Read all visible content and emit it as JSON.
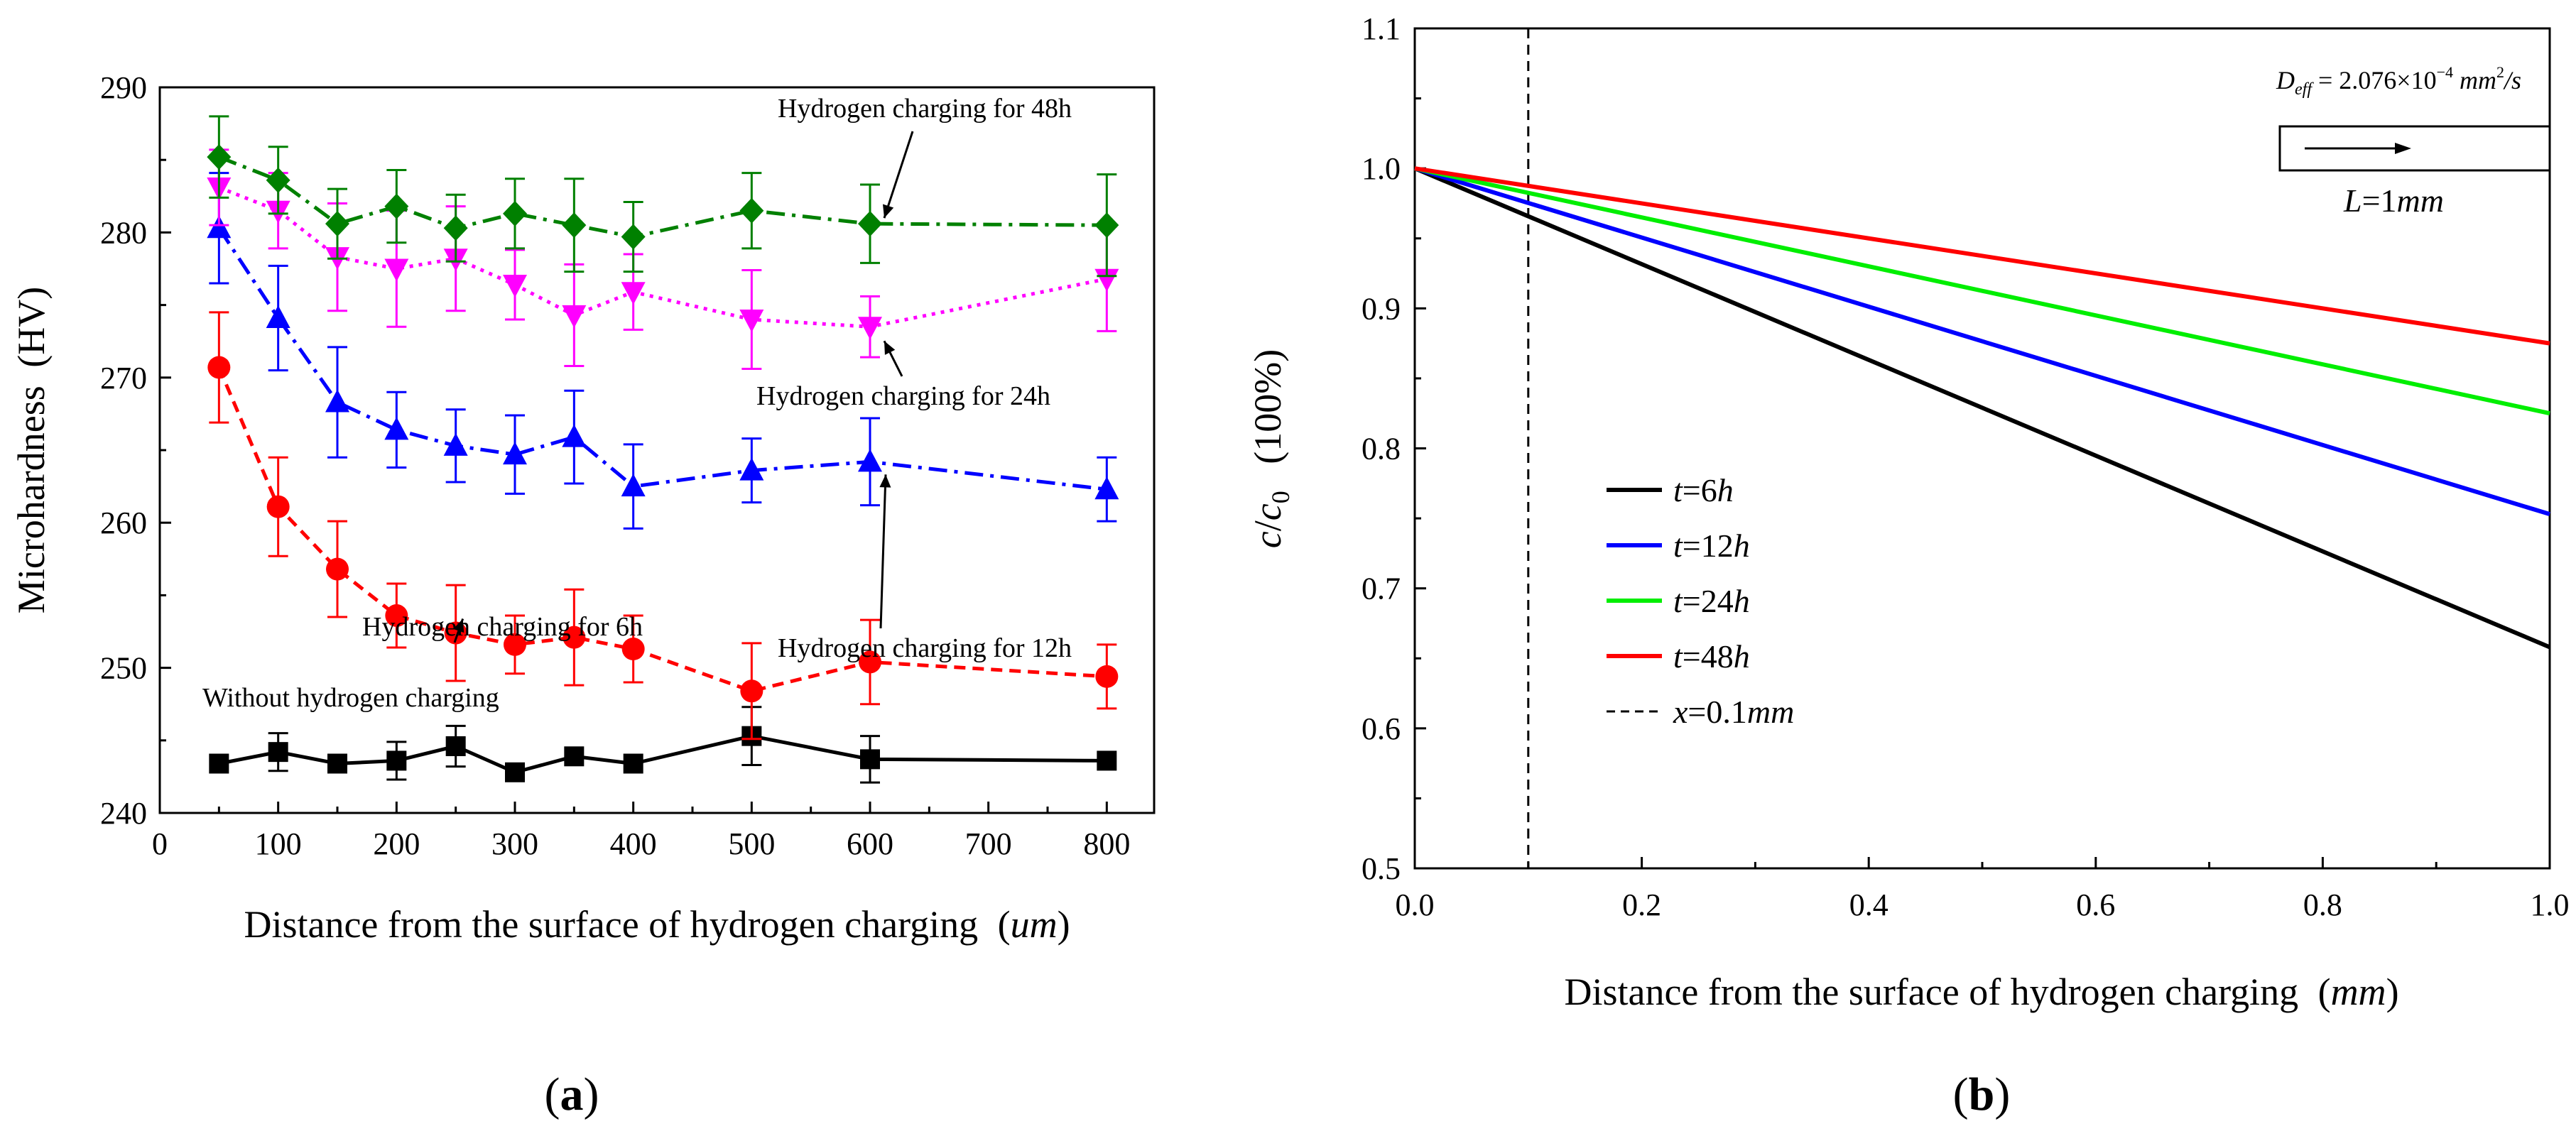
{
  "chart_data": [
    {
      "id": "a",
      "panel_label": "(a)",
      "type": "line",
      "xlabel": "Distance from the surface of hydrogen charging",
      "xlabel_unit": "um",
      "ylabel": "Microhardness",
      "ylabel_unit": "(HV)",
      "xlim": [
        0,
        840
      ],
      "ylim": [
        240,
        290
      ],
      "xticks": [
        0,
        100,
        200,
        300,
        400,
        500,
        600,
        700,
        800
      ],
      "yticks": [
        240,
        250,
        260,
        270,
        280,
        290
      ],
      "x": [
        50,
        100,
        150,
        200,
        250,
        300,
        350,
        400,
        500,
        600,
        800
      ],
      "series": [
        {
          "name": "Without hydrogen charging",
          "color": "#000000",
          "marker": "square",
          "dash": "solid",
          "values": [
            243.4,
            244.2,
            243.4,
            243.6,
            244.6,
            242.8,
            243.9,
            243.4,
            245.3,
            243.7,
            243.6
          ],
          "errors": [
            0.0,
            1.3,
            0.0,
            1.3,
            1.4,
            0.0,
            0.0,
            0.0,
            2.0,
            1.6,
            0.0
          ]
        },
        {
          "name": "Hydrogen charging for 6h",
          "color": "#ff0000",
          "marker": "circle",
          "dash": "dashed",
          "values": [
            270.7,
            261.1,
            256.8,
            253.6,
            252.4,
            251.6,
            252.1,
            251.3,
            248.4,
            250.4,
            249.4
          ],
          "errors": [
            3.8,
            3.4,
            3.3,
            2.2,
            3.3,
            2.0,
            3.3,
            2.3,
            3.3,
            2.9,
            2.2
          ]
        },
        {
          "name": "Hydrogen charging for 12h",
          "color": "#0000ff",
          "marker": "triangle-up",
          "dash": "dashdot",
          "values": [
            280.3,
            274.1,
            268.3,
            266.4,
            265.3,
            264.7,
            265.9,
            262.5,
            263.6,
            264.2,
            262.3
          ],
          "errors": [
            3.8,
            3.6,
            3.8,
            2.6,
            2.5,
            2.7,
            3.2,
            2.9,
            2.2,
            3.0,
            2.2
          ]
        },
        {
          "name": "Hydrogen charging for 24h",
          "color": "#ff00ff",
          "marker": "triangle-down",
          "dash": "dotted",
          "values": [
            283.1,
            281.5,
            278.3,
            277.5,
            278.2,
            276.4,
            274.3,
            275.9,
            274.0,
            273.5,
            276.8
          ],
          "errors": [
            2.6,
            2.6,
            3.7,
            4.0,
            3.6,
            2.4,
            3.5,
            2.6,
            3.4,
            2.1,
            3.6
          ]
        },
        {
          "name": "Hydrogen charging for 48h",
          "color": "#008000",
          "marker": "diamond",
          "dash": "dashdot",
          "values": [
            285.2,
            283.6,
            280.6,
            281.8,
            280.3,
            281.3,
            280.5,
            279.7,
            281.5,
            280.6,
            280.5
          ],
          "errors": [
            2.8,
            2.3,
            2.4,
            2.5,
            2.3,
            2.4,
            3.2,
            2.4,
            2.6,
            2.7,
            3.5
          ]
        }
      ],
      "annotations": [
        {
          "text": "Hydrogen charging for 48h",
          "series": 4
        },
        {
          "text": "Hydrogen charging for 24h",
          "series": 3
        },
        {
          "text": "Hydrogen charging for 12h",
          "series": 2
        },
        {
          "text": "Hydrogen charging for 6h",
          "series": 1
        },
        {
          "text": "Without hydrogen charging",
          "series": 0
        }
      ]
    },
    {
      "id": "b",
      "panel_label": "(b)",
      "type": "line",
      "xlabel": "Distance from the surface of hydrogen charging",
      "xlabel_unit": "mm",
      "ylabel": "c/c0",
      "ylabel_unit": "(100%)",
      "xlim": [
        0.0,
        1.0
      ],
      "ylim": [
        0.5,
        1.1
      ],
      "xticks": [
        "0.0",
        "0.2",
        "0.4",
        "0.6",
        "0.8",
        "1.0"
      ],
      "yticks": [
        "0.5",
        "0.6",
        "0.7",
        "0.8",
        "0.9",
        "1.0",
        "1.1"
      ],
      "series": [
        {
          "name": "t=6h",
          "color": "#000000",
          "x": [
            0.0,
            1.0
          ],
          "values": [
            1.0,
            0.658
          ]
        },
        {
          "name": "t=12h",
          "color": "#0000ff",
          "x": [
            0.0,
            1.0
          ],
          "values": [
            1.0,
            0.753
          ]
        },
        {
          "name": "t=24h",
          "color": "#00ee00",
          "x": [
            0.0,
            1.0
          ],
          "values": [
            1.0,
            0.825
          ]
        },
        {
          "name": "t=48h",
          "color": "#ff0000",
          "x": [
            0.0,
            1.0
          ],
          "values": [
            1.0,
            0.875
          ]
        }
      ],
      "vline": {
        "name": "x=0.1mm",
        "x": 0.1,
        "color": "#000000"
      },
      "legend_items": [
        {
          "prefix": "t",
          "value": "=6",
          "unit": "h"
        },
        {
          "prefix": "t",
          "value": "=12",
          "unit": "h"
        },
        {
          "prefix": "t",
          "value": "=24",
          "unit": "h"
        },
        {
          "prefix": "t",
          "value": "=48",
          "unit": "h"
        },
        {
          "prefix": "x",
          "value": "=0.1",
          "unit": "mm"
        }
      ],
      "inset": {
        "formula_lhs": "D",
        "formula_sub": "eff",
        "formula_rhs": " = 2.076×10",
        "formula_exp": "−4",
        "formula_units": " mm",
        "formula_units_exp": "2",
        "formula_tail": "/s",
        "length_label": "L",
        "length_value": "=1",
        "length_unit": "mm"
      }
    }
  ]
}
